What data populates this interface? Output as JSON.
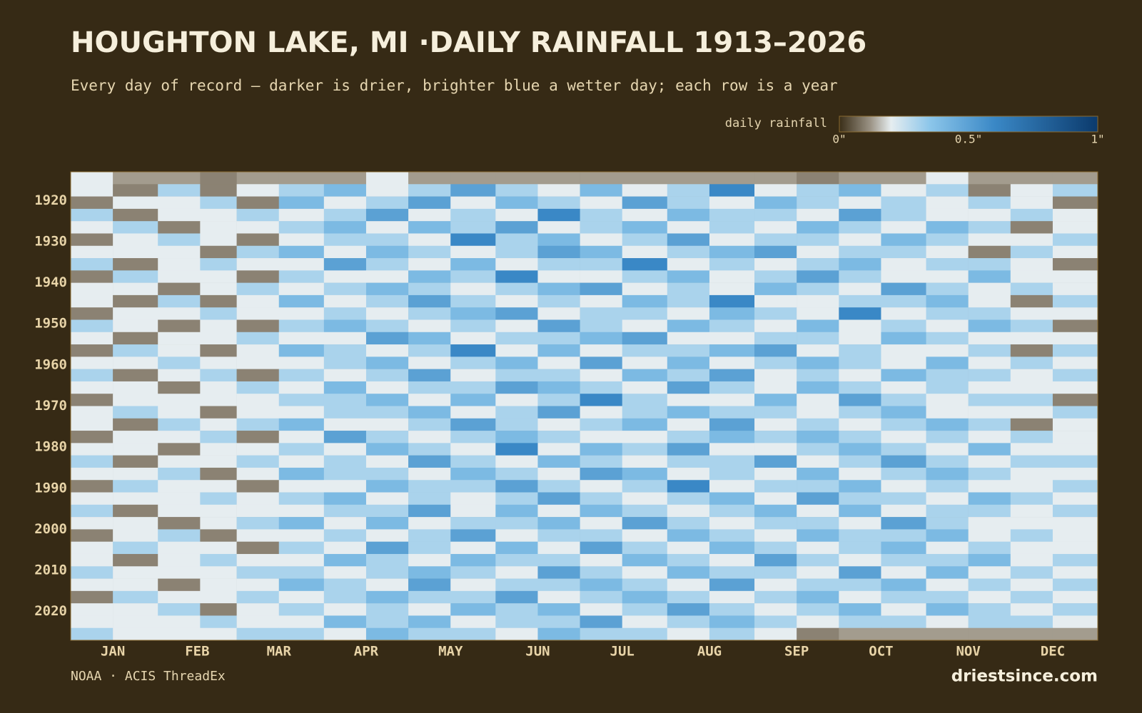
{
  "chart_data": {
    "type": "heatmap",
    "title": "HOUGHTON LAKE, MI ·DAILY RAINFALL 1913–2026",
    "subtitle": "Every day of record — darker is drier, brighter blue a wetter day; each row is a year",
    "source": "NOAA · ACIS ThreadEx",
    "site": "driestsince.com",
    "colorbar": {
      "label": "daily rainfall",
      "ticks": [
        {
          "value": 0,
          "label": "0\""
        },
        {
          "value": 0.5,
          "label": "0.5\""
        },
        {
          "value": 1,
          "label": "1\""
        }
      ]
    },
    "colormap": [
      {
        "value": 0,
        "color": "#3a2e18"
      },
      {
        "value": 0.12,
        "color": "#9b9385"
      },
      {
        "value": 0.2,
        "color": "#e6edf0"
      },
      {
        "value": 0.35,
        "color": "#8cc6ea"
      },
      {
        "value": 0.6,
        "color": "#3a88c6"
      },
      {
        "value": 1,
        "color": "#0b3a6c"
      }
    ],
    "missing_color": "#a39c8e",
    "xlim": [
      1,
      366
    ],
    "xticks": [
      {
        "value": 16,
        "label": "JAN"
      },
      {
        "value": 46,
        "label": "FEB"
      },
      {
        "value": 75,
        "label": "MAR"
      },
      {
        "value": 106,
        "label": "APR"
      },
      {
        "value": 136,
        "label": "MAY"
      },
      {
        "value": 167,
        "label": "JUN"
      },
      {
        "value": 197,
        "label": "JUL"
      },
      {
        "value": 228,
        "label": "AUG"
      },
      {
        "value": 259,
        "label": "SEP"
      },
      {
        "value": 289,
        "label": "OCT"
      },
      {
        "value": 320,
        "label": "NOV"
      },
      {
        "value": 350,
        "label": "DEC"
      }
    ],
    "ylim": [
      1913,
      2027
    ],
    "yticks": [
      1920,
      1930,
      1940,
      1950,
      1960,
      1970,
      1980,
      1990,
      2000,
      2010,
      2020
    ],
    "x": [
      1,
      16,
      32,
      47,
      60,
      75,
      91,
      106,
      121,
      136,
      152,
      167,
      182,
      197,
      213,
      228,
      244,
      259,
      274,
      289,
      305,
      320,
      335,
      350
    ],
    "y": [
      1913,
      1916,
      1919,
      1922,
      1925,
      1928,
      1931,
      1934,
      1937,
      1940,
      1943,
      1946,
      1949,
      1952,
      1955,
      1958,
      1961,
      1964,
      1967,
      1970,
      1973,
      1976,
      1979,
      1982,
      1985,
      1988,
      1991,
      1994,
      1997,
      2000,
      2003,
      2006,
      2009,
      2012,
      2015,
      2018,
      2021,
      2024
    ],
    "values": [
      [
        0.2,
        null,
        null,
        0.1,
        null,
        null,
        null,
        0.2,
        null,
        null,
        null,
        null,
        null,
        null,
        null,
        null,
        null,
        0.1,
        null,
        null,
        0.2,
        null,
        null,
        null
      ],
      [
        0.2,
        0.1,
        0.3,
        0.1,
        0.2,
        0.3,
        0.4,
        0.2,
        0.3,
        0.5,
        0.3,
        0.2,
        0.4,
        0.2,
        0.3,
        0.6,
        0.2,
        0.3,
        0.4,
        0.2,
        0.3,
        0.1,
        0.2,
        0.3
      ],
      [
        0.1,
        0.2,
        0.2,
        0.3,
        0.1,
        0.4,
        0.2,
        0.3,
        0.5,
        0.2,
        0.4,
        0.3,
        0.2,
        0.5,
        0.3,
        0.2,
        0.4,
        0.3,
        0.2,
        0.3,
        0.2,
        0.3,
        0.2,
        0.1
      ],
      [
        0.3,
        0.1,
        0.2,
        0.2,
        0.3,
        0.2,
        0.3,
        0.5,
        0.2,
        0.3,
        0.2,
        0.6,
        0.3,
        0.2,
        0.4,
        0.3,
        0.3,
        0.2,
        0.5,
        0.3,
        0.2,
        0.2,
        0.3,
        0.2
      ],
      [
        0.2,
        0.3,
        0.1,
        0.2,
        0.2,
        0.3,
        0.4,
        0.2,
        0.4,
        0.3,
        0.5,
        0.2,
        0.3,
        0.4,
        0.2,
        0.3,
        0.2,
        0.4,
        0.3,
        0.2,
        0.4,
        0.3,
        0.1,
        0.2
      ],
      [
        0.1,
        0.2,
        0.3,
        0.2,
        0.1,
        0.2,
        0.3,
        0.3,
        0.2,
        0.6,
        0.3,
        0.4,
        0.2,
        0.3,
        0.5,
        0.2,
        0.3,
        0.3,
        0.2,
        0.4,
        0.3,
        0.2,
        0.2,
        0.3
      ],
      [
        0.2,
        0.2,
        0.2,
        0.1,
        0.3,
        0.4,
        0.2,
        0.4,
        0.3,
        0.2,
        0.3,
        0.5,
        0.4,
        0.2,
        0.3,
        0.4,
        0.5,
        0.2,
        0.3,
        0.3,
        0.2,
        0.1,
        0.3,
        0.2
      ],
      [
        0.3,
        0.1,
        0.2,
        0.3,
        0.2,
        0.2,
        0.5,
        0.3,
        0.2,
        0.4,
        0.2,
        0.3,
        0.3,
        0.6,
        0.2,
        0.3,
        0.2,
        0.3,
        0.4,
        0.2,
        0.3,
        0.3,
        0.2,
        0.1
      ],
      [
        0.1,
        0.3,
        0.2,
        0.2,
        0.1,
        0.3,
        0.2,
        0.2,
        0.4,
        0.3,
        0.6,
        0.2,
        0.2,
        0.3,
        0.4,
        0.2,
        0.3,
        0.5,
        0.3,
        0.2,
        0.2,
        0.4,
        0.2,
        0.2
      ],
      [
        0.2,
        0.2,
        0.1,
        0.2,
        0.3,
        0.2,
        0.3,
        0.4,
        0.3,
        0.2,
        0.3,
        0.4,
        0.5,
        0.2,
        0.3,
        0.2,
        0.4,
        0.3,
        0.2,
        0.5,
        0.3,
        0.2,
        0.3,
        0.2
      ],
      [
        0.2,
        0.1,
        0.3,
        0.1,
        0.2,
        0.4,
        0.2,
        0.3,
        0.5,
        0.3,
        0.2,
        0.3,
        0.2,
        0.4,
        0.3,
        0.6,
        0.2,
        0.2,
        0.3,
        0.3,
        0.4,
        0.2,
        0.1,
        0.3
      ],
      [
        0.1,
        0.2,
        0.2,
        0.3,
        0.2,
        0.2,
        0.3,
        0.2,
        0.3,
        0.4,
        0.5,
        0.2,
        0.3,
        0.3,
        0.2,
        0.4,
        0.3,
        0.2,
        0.6,
        0.2,
        0.3,
        0.3,
        0.2,
        0.2
      ],
      [
        0.3,
        0.2,
        0.1,
        0.2,
        0.1,
        0.3,
        0.4,
        0.3,
        0.2,
        0.3,
        0.2,
        0.5,
        0.3,
        0.2,
        0.4,
        0.3,
        0.2,
        0.4,
        0.2,
        0.3,
        0.2,
        0.4,
        0.3,
        0.1
      ],
      [
        0.2,
        0.1,
        0.2,
        0.2,
        0.3,
        0.2,
        0.2,
        0.5,
        0.4,
        0.2,
        0.3,
        0.3,
        0.4,
        0.5,
        0.2,
        0.2,
        0.3,
        0.3,
        0.2,
        0.4,
        0.3,
        0.2,
        0.2,
        0.2
      ],
      [
        0.1,
        0.3,
        0.2,
        0.1,
        0.2,
        0.4,
        0.3,
        0.2,
        0.3,
        0.6,
        0.2,
        0.4,
        0.2,
        0.3,
        0.3,
        0.4,
        0.5,
        0.2,
        0.3,
        0.2,
        0.2,
        0.3,
        0.1,
        0.3
      ],
      [
        0.2,
        0.2,
        0.3,
        0.2,
        0.2,
        0.2,
        0.3,
        0.4,
        0.2,
        0.3,
        0.4,
        0.2,
        0.5,
        0.2,
        0.4,
        0.2,
        0.3,
        0.4,
        0.3,
        0.2,
        0.4,
        0.2,
        0.3,
        0.2
      ],
      [
        0.3,
        0.1,
        0.2,
        0.3,
        0.1,
        0.3,
        0.2,
        0.3,
        0.5,
        0.2,
        0.3,
        0.3,
        0.2,
        0.4,
        0.3,
        0.5,
        0.2,
        0.3,
        0.2,
        0.4,
        0.3,
        0.3,
        0.2,
        0.3
      ],
      [
        0.2,
        0.2,
        0.1,
        0.2,
        0.3,
        0.2,
        0.4,
        0.2,
        0.3,
        0.3,
        0.5,
        0.4,
        0.3,
        0.2,
        0.5,
        0.3,
        0.2,
        0.4,
        0.3,
        0.2,
        0.3,
        0.2,
        0.2,
        0.2
      ],
      [
        0.1,
        0.2,
        0.2,
        0.2,
        0.2,
        0.3,
        0.3,
        0.4,
        0.2,
        0.4,
        0.2,
        0.3,
        0.6,
        0.3,
        0.2,
        0.2,
        0.4,
        0.2,
        0.5,
        0.3,
        0.2,
        0.3,
        0.3,
        0.1
      ],
      [
        0.2,
        0.3,
        0.2,
        0.1,
        0.2,
        0.2,
        0.3,
        0.3,
        0.4,
        0.2,
        0.3,
        0.5,
        0.2,
        0.3,
        0.4,
        0.3,
        0.3,
        0.2,
        0.3,
        0.4,
        0.2,
        0.2,
        0.2,
        0.3
      ],
      [
        0.2,
        0.1,
        0.3,
        0.2,
        0.3,
        0.4,
        0.2,
        0.2,
        0.3,
        0.5,
        0.3,
        0.2,
        0.3,
        0.4,
        0.2,
        0.5,
        0.2,
        0.3,
        0.2,
        0.3,
        0.4,
        0.3,
        0.1,
        0.2
      ],
      [
        0.1,
        0.2,
        0.2,
        0.3,
        0.1,
        0.2,
        0.5,
        0.3,
        0.2,
        0.3,
        0.4,
        0.3,
        0.2,
        0.2,
        0.3,
        0.4,
        0.3,
        0.4,
        0.3,
        0.2,
        0.3,
        0.2,
        0.3,
        0.2
      ],
      [
        0.2,
        0.2,
        0.1,
        0.2,
        0.2,
        0.3,
        0.2,
        0.4,
        0.3,
        0.2,
        0.6,
        0.2,
        0.4,
        0.3,
        0.5,
        0.2,
        0.2,
        0.3,
        0.4,
        0.3,
        0.2,
        0.4,
        0.2,
        0.2
      ],
      [
        0.3,
        0.1,
        0.2,
        0.2,
        0.3,
        0.2,
        0.3,
        0.2,
        0.5,
        0.3,
        0.2,
        0.4,
        0.3,
        0.2,
        0.3,
        0.3,
        0.5,
        0.2,
        0.3,
        0.5,
        0.3,
        0.2,
        0.3,
        0.3
      ],
      [
        0.2,
        0.2,
        0.3,
        0.1,
        0.2,
        0.4,
        0.3,
        0.3,
        0.2,
        0.4,
        0.3,
        0.2,
        0.5,
        0.4,
        0.2,
        0.3,
        0.2,
        0.4,
        0.2,
        0.3,
        0.4,
        0.3,
        0.2,
        0.2
      ],
      [
        0.1,
        0.3,
        0.2,
        0.2,
        0.1,
        0.2,
        0.2,
        0.4,
        0.3,
        0.3,
        0.5,
        0.3,
        0.2,
        0.3,
        0.6,
        0.2,
        0.3,
        0.3,
        0.4,
        0.2,
        0.3,
        0.2,
        0.2,
        0.3
      ],
      [
        0.2,
        0.2,
        0.2,
        0.3,
        0.2,
        0.3,
        0.4,
        0.2,
        0.3,
        0.2,
        0.3,
        0.5,
        0.3,
        0.2,
        0.3,
        0.4,
        0.2,
        0.5,
        0.3,
        0.3,
        0.2,
        0.4,
        0.3,
        0.2
      ],
      [
        0.3,
        0.1,
        0.2,
        0.2,
        0.2,
        0.2,
        0.3,
        0.3,
        0.5,
        0.2,
        0.4,
        0.2,
        0.4,
        0.3,
        0.2,
        0.3,
        0.4,
        0.2,
        0.4,
        0.2,
        0.3,
        0.3,
        0.2,
        0.3
      ],
      [
        0.2,
        0.2,
        0.1,
        0.2,
        0.3,
        0.4,
        0.2,
        0.4,
        0.2,
        0.3,
        0.3,
        0.4,
        0.2,
        0.5,
        0.3,
        0.2,
        0.3,
        0.3,
        0.2,
        0.5,
        0.3,
        0.2,
        0.2,
        0.2
      ],
      [
        0.1,
        0.2,
        0.3,
        0.1,
        0.2,
        0.2,
        0.3,
        0.2,
        0.3,
        0.5,
        0.2,
        0.3,
        0.3,
        0.2,
        0.4,
        0.3,
        0.2,
        0.4,
        0.3,
        0.3,
        0.4,
        0.2,
        0.3,
        0.2
      ],
      [
        0.2,
        0.3,
        0.2,
        0.2,
        0.1,
        0.3,
        0.2,
        0.5,
        0.3,
        0.2,
        0.4,
        0.2,
        0.5,
        0.3,
        0.2,
        0.4,
        0.3,
        0.2,
        0.3,
        0.4,
        0.2,
        0.3,
        0.2,
        0.2
      ],
      [
        0.2,
        0.1,
        0.2,
        0.3,
        0.2,
        0.2,
        0.4,
        0.3,
        0.2,
        0.4,
        0.3,
        0.3,
        0.2,
        0.4,
        0.3,
        0.2,
        0.5,
        0.3,
        0.2,
        0.3,
        0.3,
        0.4,
        0.2,
        0.3
      ],
      [
        0.3,
        0.2,
        0.2,
        0.2,
        0.3,
        0.3,
        0.2,
        0.3,
        0.4,
        0.3,
        0.2,
        0.5,
        0.3,
        0.2,
        0.4,
        0.3,
        0.3,
        0.2,
        0.5,
        0.2,
        0.4,
        0.2,
        0.3,
        0.2
      ],
      [
        0.2,
        0.2,
        0.1,
        0.2,
        0.2,
        0.4,
        0.3,
        0.2,
        0.5,
        0.2,
        0.3,
        0.3,
        0.4,
        0.3,
        0.2,
        0.5,
        0.2,
        0.3,
        0.3,
        0.4,
        0.2,
        0.3,
        0.2,
        0.3
      ],
      [
        0.1,
        0.3,
        0.2,
        0.2,
        0.3,
        0.2,
        0.3,
        0.4,
        0.3,
        0.3,
        0.5,
        0.2,
        0.3,
        0.4,
        0.3,
        0.2,
        0.3,
        0.4,
        0.2,
        0.3,
        0.3,
        0.2,
        0.3,
        0.2
      ],
      [
        0.2,
        0.2,
        0.3,
        0.1,
        0.2,
        0.3,
        0.2,
        0.3,
        0.2,
        0.4,
        0.3,
        0.4,
        0.2,
        0.3,
        0.5,
        0.3,
        0.2,
        0.3,
        0.4,
        0.2,
        0.4,
        0.3,
        0.2,
        0.3
      ],
      [
        0.2,
        0.2,
        0.2,
        0.3,
        0.2,
        0.2,
        0.4,
        0.3,
        0.4,
        0.2,
        0.3,
        0.3,
        0.5,
        0.2,
        0.3,
        0.4,
        0.3,
        0.2,
        0.3,
        0.3,
        0.2,
        0.3,
        0.3,
        0.2
      ],
      [
        0.3,
        0.2,
        0.2,
        0.2,
        0.3,
        0.3,
        0.2,
        0.4,
        0.3,
        0.3,
        0.2,
        0.4,
        0.3,
        0.3,
        0.2,
        0.3,
        0.2,
        0.1,
        null,
        null,
        null,
        null,
        null,
        null
      ]
    ]
  }
}
